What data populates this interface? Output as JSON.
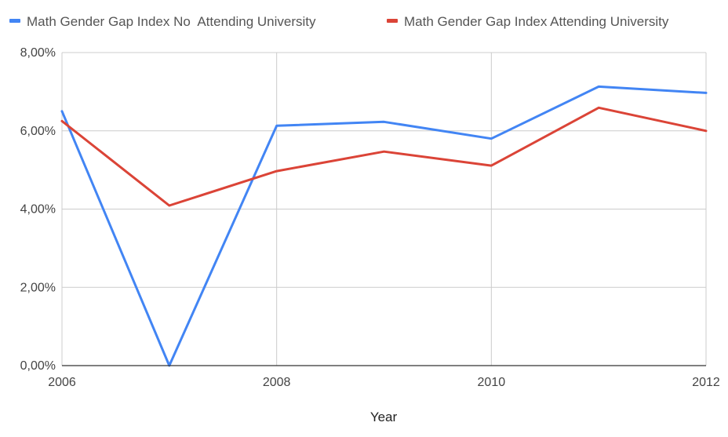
{
  "chart_data": {
    "type": "line",
    "title": "",
    "xlabel": "Year",
    "ylabel": "",
    "xlim": [
      2006,
      2012
    ],
    "ylim": [
      0,
      8
    ],
    "x_ticks": [
      {
        "value": 2006,
        "label": "2006"
      },
      {
        "value": 2008,
        "label": "2008"
      },
      {
        "value": 2010,
        "label": "2010"
      },
      {
        "value": 2012,
        "label": "2012"
      }
    ],
    "y_ticks": [
      {
        "value": 0,
        "label": "0,00%"
      },
      {
        "value": 2,
        "label": "2,00%"
      },
      {
        "value": 4,
        "label": "4,00%"
      },
      {
        "value": 6,
        "label": "6,00%"
      },
      {
        "value": 8,
        "label": "8,00%"
      }
    ],
    "legend_position": "top-left",
    "grid": true,
    "x": [
      2006,
      2007,
      2008,
      2009,
      2010,
      2011,
      2012
    ],
    "series": [
      {
        "name": "Math Gender Gap Index No  Attending University",
        "color": "#4285f4",
        "values": [
          6.5,
          0.0,
          6.13,
          6.23,
          5.8,
          7.13,
          6.97
        ]
      },
      {
        "name": "Math Gender Gap Index Attending University",
        "color": "#db4437",
        "values": [
          6.25,
          4.09,
          4.97,
          5.47,
          5.11,
          6.59,
          6.0
        ]
      }
    ]
  }
}
